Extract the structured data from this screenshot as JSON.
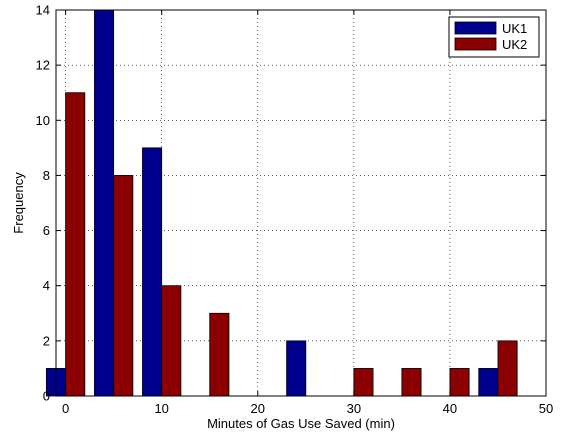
{
  "chart_data": {
    "type": "bar",
    "title": "",
    "xlabel": "Minutes of Gas Use Saved (min)",
    "ylabel": "Frequency",
    "xlim": [
      -1,
      50
    ],
    "ylim": [
      0,
      14
    ],
    "xticks": [
      0,
      10,
      20,
      30,
      40,
      50
    ],
    "yticks": [
      0,
      2,
      4,
      6,
      8,
      10,
      12,
      14
    ],
    "grid": true,
    "legend_position": "top-right",
    "bin_centers": [
      0,
      5,
      10,
      15,
      20,
      25,
      30,
      35,
      40,
      45
    ],
    "series": [
      {
        "name": "UK1",
        "color": "#00008f",
        "values": [
          1,
          14,
          9,
          0,
          0,
          2,
          0,
          0,
          0,
          1
        ]
      },
      {
        "name": "UK2",
        "color": "#8b0000",
        "values": [
          11,
          8,
          4,
          3,
          0,
          0,
          1,
          1,
          1,
          2
        ]
      }
    ]
  }
}
